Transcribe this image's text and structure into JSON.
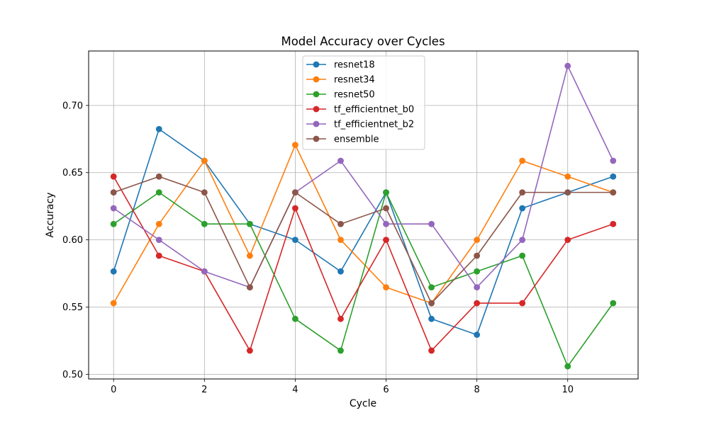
{
  "chart_data": {
    "type": "line",
    "title": "Model Accuracy over Cycles",
    "xlabel": "Cycle",
    "ylabel": "Accuracy",
    "x": [
      0,
      1,
      2,
      3,
      4,
      5,
      6,
      7,
      8,
      9,
      10,
      11
    ],
    "xticks": [
      0,
      2,
      4,
      6,
      8,
      10
    ],
    "yticks": [
      0.5,
      0.55,
      0.6,
      0.65,
      0.7
    ],
    "ytick_labels": [
      "0.50",
      "0.55",
      "0.60",
      "0.65",
      "0.70"
    ],
    "xlim": [
      -0.55,
      11.55
    ],
    "ylim": [
      0.4965,
      0.7405
    ],
    "grid": true,
    "legend_position": "upper center",
    "series": [
      {
        "name": "resnet18",
        "color": "#1f77b4",
        "values": [
          0.5765,
          0.6824,
          0.6588,
          0.6118,
          0.6,
          0.5765,
          0.6353,
          0.5412,
          0.5294,
          0.6235,
          0.6353,
          0.6471
        ]
      },
      {
        "name": "resnet34",
        "color": "#ff7f0e",
        "values": [
          0.5529,
          0.6118,
          0.6588,
          0.5882,
          0.6706,
          0.6,
          0.5647,
          0.5529,
          0.6,
          0.6588,
          0.6471,
          0.6353
        ]
      },
      {
        "name": "resnet50",
        "color": "#2ca02c",
        "values": [
          0.6118,
          0.6353,
          0.6118,
          0.6118,
          0.5412,
          0.5176,
          0.6353,
          0.5647,
          0.5765,
          0.5882,
          0.5059,
          0.5529
        ]
      },
      {
        "name": "tf_efficientnet_b0",
        "color": "#d62728",
        "values": [
          0.6471,
          0.5882,
          0.5765,
          0.5176,
          0.6235,
          0.5412,
          0.6,
          0.5176,
          0.5529,
          0.5529,
          0.6,
          0.6118
        ]
      },
      {
        "name": "tf_efficientnet_b2",
        "color": "#9467bd",
        "values": [
          0.6235,
          0.6,
          0.5765,
          0.5647,
          0.6353,
          0.6588,
          0.6118,
          0.6118,
          0.5647,
          0.6,
          0.7294,
          0.6588
        ]
      },
      {
        "name": "ensemble",
        "color": "#8c564b",
        "values": [
          0.6353,
          0.6471,
          0.6353,
          0.5647,
          0.6353,
          0.6118,
          0.6235,
          0.5529,
          0.5882,
          0.6353,
          0.6353,
          0.6353
        ]
      }
    ]
  }
}
